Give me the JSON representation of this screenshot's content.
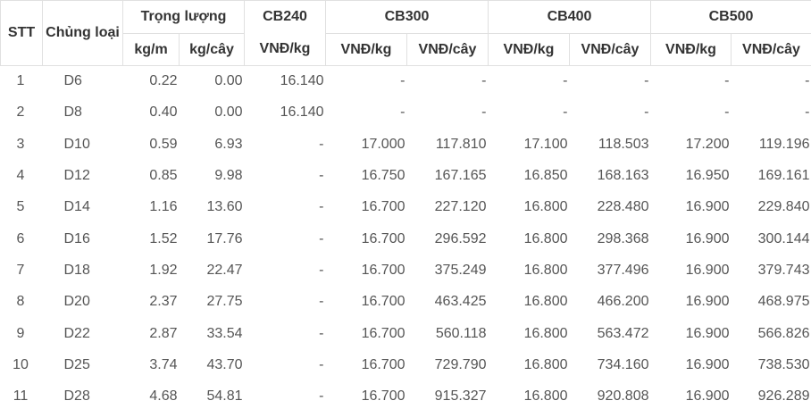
{
  "header": {
    "stt": "STT",
    "product": "Chủng loại",
    "weight": "Trọng lượng",
    "kg_m": "kg/m",
    "kg_cay": "kg/cây",
    "groups": [
      {
        "name": "CB240",
        "units": [
          "VNĐ/kg"
        ]
      },
      {
        "name": "CB300",
        "units": [
          "VNĐ/kg",
          "VNĐ/cây"
        ]
      },
      {
        "name": "CB400",
        "units": [
          "VNĐ/kg",
          "VNĐ/cây"
        ]
      },
      {
        "name": "CB500",
        "units": [
          "VNĐ/kg",
          "VNĐ/cây"
        ]
      }
    ]
  },
  "rows": [
    [
      "1",
      "D6",
      "0.22",
      "0.00",
      "16.140",
      "-",
      "-",
      "-",
      "-",
      "-",
      "-"
    ],
    [
      "2",
      "D8",
      "0.40",
      "0.00",
      "16.140",
      "-",
      "-",
      "-",
      "-",
      "-",
      "-"
    ],
    [
      "3",
      "D10",
      "0.59",
      "6.93",
      "-",
      "17.000",
      "117.810",
      "17.100",
      "118.503",
      "17.200",
      "119.196"
    ],
    [
      "4",
      "D12",
      "0.85",
      "9.98",
      "-",
      "16.750",
      "167.165",
      "16.850",
      "168.163",
      "16.950",
      "169.161"
    ],
    [
      "5",
      "D14",
      "1.16",
      "13.60",
      "-",
      "16.700",
      "227.120",
      "16.800",
      "228.480",
      "16.900",
      "229.840"
    ],
    [
      "6",
      "D16",
      "1.52",
      "17.76",
      "-",
      "16.700",
      "296.592",
      "16.800",
      "298.368",
      "16.900",
      "300.144"
    ],
    [
      "7",
      "D18",
      "1.92",
      "22.47",
      "-",
      "16.700",
      "375.249",
      "16.800",
      "377.496",
      "16.900",
      "379.743"
    ],
    [
      "8",
      "D20",
      "2.37",
      "27.75",
      "-",
      "16.700",
      "463.425",
      "16.800",
      "466.200",
      "16.900",
      "468.975"
    ],
    [
      "9",
      "D22",
      "2.87",
      "33.54",
      "-",
      "16.700",
      "560.118",
      "16.800",
      "563.472",
      "16.900",
      "566.826"
    ],
    [
      "10",
      "D25",
      "3.74",
      "43.70",
      "-",
      "16.700",
      "729.790",
      "16.800",
      "734.160",
      "16.900",
      "738.530"
    ],
    [
      "11",
      "D28",
      "4.68",
      "54.81",
      "-",
      "16.700",
      "915.327",
      "16.800",
      "920.808",
      "16.900",
      "926.289"
    ]
  ]
}
